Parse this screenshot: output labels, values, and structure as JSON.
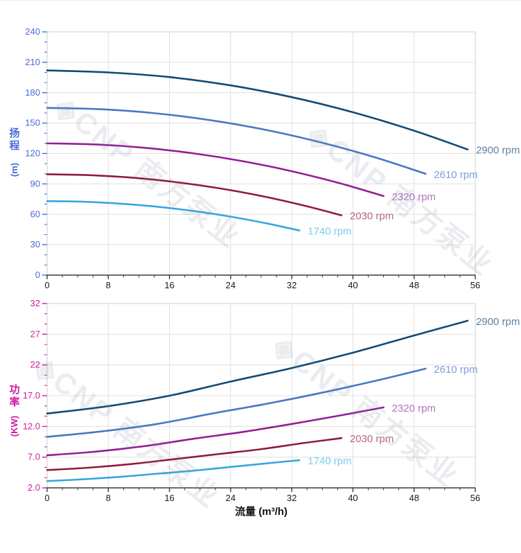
{
  "watermark": {
    "text": "◈CNP 南方泵业"
  },
  "style": {
    "grid_color": "#e0e0e0",
    "border_color": "#cfcfcf",
    "x_axis_color": "#3b3b3b",
    "x_label_color": "#1a1a1a",
    "head_axis_color": "#4a6bd4",
    "power_axis_color": "#cf1d9e"
  },
  "chart_data": [
    {
      "id": "head",
      "type": "line",
      "title": "",
      "xlabel": "",
      "ylabel": "扬程 (m)",
      "ylabel_chars": [
        "扬",
        "程"
      ],
      "ylabel_unit": "(m)",
      "xlim": [
        0,
        56
      ],
      "ylim": [
        0,
        240
      ],
      "x_major": 8,
      "x_minor": 2,
      "y_major": 30,
      "y_minor_count": 2,
      "grid": true,
      "legend_position": "right-of-curve-end",
      "x_tick_labels": [
        "0",
        "8",
        "16",
        "24",
        "32",
        "40",
        "48",
        "56"
      ],
      "y_tick_labels": [
        "0",
        "30",
        "60",
        "90",
        "120",
        "150",
        "180",
        "210",
        "240"
      ],
      "series": [
        {
          "name": "2900 rpm",
          "color": "#134a73",
          "label_color": "#607f9d",
          "x": [
            0,
            8,
            16,
            24,
            32,
            40,
            48,
            55
          ],
          "y": [
            202,
            200,
            195.4,
            187.2,
            175.6,
            160.7,
            142.5,
            124
          ]
        },
        {
          "name": "2610 rpm",
          "color": "#4a77c2",
          "label_color": "#7e9fd8",
          "x": [
            0,
            7.2,
            14.4,
            21.6,
            28.8,
            36,
            43.2,
            49.5
          ],
          "y": [
            165,
            163.6,
            159.5,
            152.6,
            143,
            130.6,
            115.5,
            100
          ]
        },
        {
          "name": "2320 rpm",
          "color": "#941d96",
          "label_color": "#b173c4",
          "x": [
            0,
            6.4,
            12.8,
            19.2,
            25.6,
            32,
            38.4,
            44
          ],
          "y": [
            130,
            128.9,
            125.6,
            120.1,
            112.4,
            102.5,
            90.4,
            78
          ]
        },
        {
          "name": "2030 rpm",
          "color": "#8f1b3a",
          "label_color": "#b46a80",
          "x": [
            0,
            5.6,
            11.2,
            16.8,
            22.4,
            28,
            33.6,
            38.5
          ],
          "y": [
            99.5,
            98.6,
            96.1,
            91.8,
            85.8,
            78.1,
            68.6,
            59
          ]
        },
        {
          "name": "1740 rpm",
          "color": "#38a6e0",
          "label_color": "#7fc9ef",
          "x": [
            0,
            4.8,
            9.6,
            14.4,
            19.2,
            24,
            28.8,
            33
          ],
          "y": [
            73,
            72.4,
            70.5,
            67.5,
            63.2,
            57.7,
            50.9,
            44
          ]
        }
      ]
    },
    {
      "id": "power",
      "type": "line",
      "title": "",
      "xlabel": "流量 (m³/h)",
      "ylabel": "功率 (KW)",
      "ylabel_chars": [
        "功",
        "率"
      ],
      "ylabel_unit": "(KW)",
      "xlim": [
        0,
        56
      ],
      "ylim": [
        2,
        32
      ],
      "x_major": 8,
      "x_minor": 2,
      "y_major": 5,
      "y_minor_count": 2,
      "grid": true,
      "legend_position": "right-of-curve-end",
      "x_tick_labels": [
        "0",
        "8",
        "16",
        "24",
        "32",
        "40",
        "48",
        "56"
      ],
      "y_tick_labels": [
        "2.0",
        "7.0",
        "12.0",
        "17.0",
        "22",
        "27",
        "32"
      ],
      "series": [
        {
          "name": "2900 rpm",
          "color": "#134a73",
          "label_color": "#607f9d",
          "x": [
            0,
            8,
            16,
            24,
            32,
            40,
            48,
            55
          ],
          "y": [
            14.1,
            15.3,
            17.0,
            19.3,
            21.5,
            24.0,
            26.8,
            29.2
          ]
        },
        {
          "name": "2610 rpm",
          "color": "#4a77c2",
          "label_color": "#7e9fd8",
          "x": [
            0,
            7.2,
            14.4,
            21.6,
            28.8,
            36,
            43.2,
            49.5
          ],
          "y": [
            10.3,
            11.2,
            12.4,
            14.1,
            15.7,
            17.5,
            19.5,
            21.4
          ]
        },
        {
          "name": "2320 rpm",
          "color": "#941d96",
          "label_color": "#b173c4",
          "x": [
            0,
            6.4,
            12.8,
            19.2,
            25.6,
            32,
            38.4,
            44
          ],
          "y": [
            7.3,
            7.9,
            8.8,
            10.0,
            11.1,
            12.4,
            13.8,
            15.1
          ]
        },
        {
          "name": "2030 rpm",
          "color": "#8f1b3a",
          "label_color": "#b46a80",
          "x": [
            0,
            5.6,
            11.2,
            16.8,
            22.4,
            28,
            33.6,
            38.5
          ],
          "y": [
            4.9,
            5.3,
            5.9,
            6.7,
            7.5,
            8.3,
            9.3,
            10.1
          ]
        },
        {
          "name": "1740 rpm",
          "color": "#38a6e0",
          "label_color": "#7fc9ef",
          "x": [
            0,
            4.8,
            9.6,
            14.4,
            19.2,
            24,
            28.8,
            33
          ],
          "y": [
            3.1,
            3.4,
            3.8,
            4.3,
            4.8,
            5.4,
            6.0,
            6.5
          ]
        }
      ]
    }
  ]
}
